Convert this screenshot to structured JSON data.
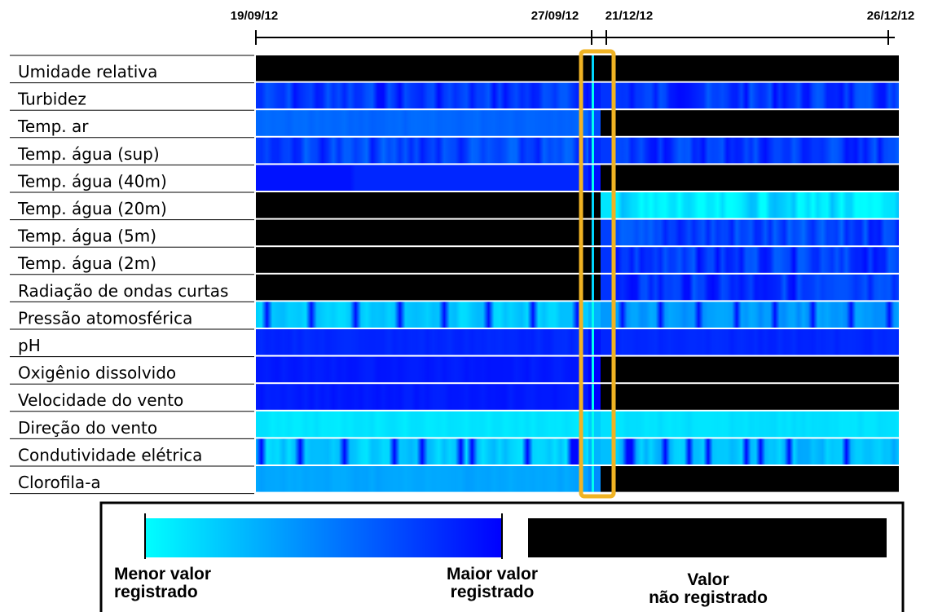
{
  "chart_data": {
    "type": "heatmap",
    "dates": [
      "19/09/12",
      "27/09/12",
      "21/12/12",
      "26/12/12"
    ],
    "periods": [
      {
        "start": "19/09/12",
        "end": "27/09/12"
      },
      {
        "start": "21/12/12",
        "end": "26/12/12"
      }
    ],
    "highlight": {
      "label": "transition between periods",
      "color": "#f0b323"
    },
    "rows": [
      {
        "label": "Umidade relativa",
        "p1": {
          "status": "missing"
        },
        "p2": {
          "status": "missing"
        }
      },
      {
        "label": "Turbidez",
        "p1": {
          "status": "recorded",
          "level": 0.8,
          "pattern": "wavy"
        },
        "p2": {
          "status": "recorded",
          "level": 0.8,
          "pattern": "wavy"
        }
      },
      {
        "label": "Temp. ar",
        "p1": {
          "status": "recorded",
          "level": 0.6,
          "pattern": "smooth"
        },
        "p2": {
          "status": "missing"
        }
      },
      {
        "label": "Temp. água (sup)",
        "p1": {
          "status": "recorded",
          "level": 0.75,
          "pattern": "wavy"
        },
        "p2": {
          "status": "recorded",
          "level": 0.78,
          "pattern": "wavy"
        }
      },
      {
        "label": "Temp. água (40m)",
        "p1": {
          "status": "recorded",
          "level": 0.85,
          "pattern": "step"
        },
        "p2": {
          "status": "missing"
        }
      },
      {
        "label": "Temp. água (20m)",
        "p1": {
          "status": "missing"
        },
        "p2": {
          "status": "recorded",
          "level": 0.1,
          "pattern": "wavy"
        }
      },
      {
        "label": "Temp. água (5m)",
        "p1": {
          "status": "missing"
        },
        "p2": {
          "status": "recorded",
          "level": 0.75,
          "pattern": "wavy"
        }
      },
      {
        "label": "Temp. água (2m)",
        "p1": {
          "status": "missing"
        },
        "p2": {
          "status": "recorded",
          "level": 0.8,
          "pattern": "wavy"
        }
      },
      {
        "label": "Radiação de ondas curtas",
        "p1": {
          "status": "missing"
        },
        "p2": {
          "status": "recorded",
          "level": 0.8,
          "pattern": "wavy"
        }
      },
      {
        "label": "Pressão atomosférica",
        "p1": {
          "status": "recorded",
          "level": 0.2,
          "pattern": "bands"
        },
        "p2": {
          "status": "recorded",
          "level": 0.4,
          "pattern": "bands"
        }
      },
      {
        "label": "pH",
        "p1": {
          "status": "recorded",
          "level": 0.85,
          "pattern": "smooth"
        },
        "p2": {
          "status": "recorded",
          "level": 0.85,
          "pattern": "smooth"
        }
      },
      {
        "label": "Oxigênio dissolvido",
        "p1": {
          "status": "recorded",
          "level": 0.9,
          "pattern": "smooth"
        },
        "p2": {
          "status": "missing"
        }
      },
      {
        "label": "Velocidade do vento",
        "p1": {
          "status": "recorded",
          "level": 0.9,
          "pattern": "smooth"
        },
        "p2": {
          "status": "missing"
        }
      },
      {
        "label": "Direção do vento",
        "p1": {
          "status": "recorded",
          "level": 0.1,
          "pattern": "smooth"
        },
        "p2": {
          "status": "recorded",
          "level": 0.12,
          "pattern": "smooth"
        }
      },
      {
        "label": "Condutividade elétrica",
        "p1": {
          "status": "recorded",
          "level": 0.2,
          "pattern": "spikes"
        },
        "p2": {
          "status": "recorded",
          "level": 0.25,
          "pattern": "spikes"
        }
      },
      {
        "label": "Clorofila-a",
        "p1": {
          "status": "recorded",
          "level": 0.35,
          "pattern": "smooth"
        },
        "p2": {
          "status": "missing"
        }
      }
    ],
    "colorscale": {
      "min_color": "#00ffff",
      "max_color": "#0000ff",
      "missing_color": "#000000"
    },
    "legend": {
      "min_label": [
        "Menor valor",
        "registrado"
      ],
      "max_label": [
        "Maior valor",
        "registrado"
      ],
      "missing_label": [
        "Valor",
        "não registrado"
      ]
    }
  }
}
